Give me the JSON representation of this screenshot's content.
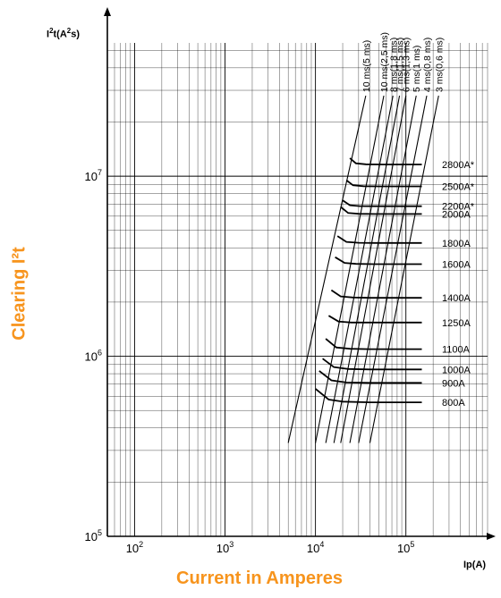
{
  "chart_data": {
    "type": "line",
    "title": "",
    "xlabel": "Current in Amperes",
    "ylabel": "Clearing I²t",
    "x_unit": "Ip(A)",
    "y_unit": "I²t(A²s)",
    "x_scale": "log",
    "y_scale": "log",
    "xlim": [
      50,
      800000
    ],
    "ylim": [
      100000,
      55000000
    ],
    "x_ticks": [
      100,
      1000,
      10000,
      100000
    ],
    "y_ticks": [
      100000,
      1000000,
      10000000
    ],
    "grid": true,
    "series": [
      {
        "name": "800A",
        "x": [
          10000,
          14000,
          20000,
          40000,
          150000
        ],
        "y": [
          660000,
          575000,
          560000,
          555000,
          555000
        ]
      },
      {
        "name": "900A",
        "x": [
          11000,
          15000,
          22000,
          40000,
          150000
        ],
        "y": [
          830000,
          735000,
          715000,
          712000,
          712000
        ]
      },
      {
        "name": "1000A",
        "x": [
          12000,
          16000,
          23000,
          40000,
          150000
        ],
        "y": [
          970000,
          870000,
          850000,
          845000,
          845000
        ]
      },
      {
        "name": "1100A",
        "x": [
          13000,
          17000,
          24000,
          40000,
          150000
        ],
        "y": [
          1250000,
          1120000,
          1100000,
          1095000,
          1095000
        ]
      },
      {
        "name": "1250A",
        "x": [
          14000,
          18000,
          25000,
          40000,
          150000
        ],
        "y": [
          1680000,
          1560000,
          1540000,
          1540000,
          1540000
        ]
      },
      {
        "name": "1400A",
        "x": [
          15000,
          19000,
          26000,
          40000,
          150000
        ],
        "y": [
          2330000,
          2150000,
          2120000,
          2110000,
          2110000
        ]
      },
      {
        "name": "1600A",
        "x": [
          16500,
          21000,
          28000,
          45000,
          150000
        ],
        "y": [
          3550000,
          3300000,
          3260000,
          3250000,
          3250000
        ]
      },
      {
        "name": "1800A",
        "x": [
          17500,
          22000,
          30000,
          45000,
          150000
        ],
        "y": [
          4650000,
          4320000,
          4270000,
          4260000,
          4260000
        ]
      },
      {
        "name": "2000A",
        "x": [
          19000,
          23000,
          30000,
          45000,
          150000
        ],
        "y": [
          6750000,
          6250000,
          6180000,
          6170000,
          6170000
        ]
      },
      {
        "name": "2200A*",
        "x": [
          20000,
          24000,
          31000,
          45000,
          150000
        ],
        "y": [
          7350000,
          6900000,
          6820000,
          6810000,
          6810000
        ]
      },
      {
        "name": "2500A*",
        "x": [
          22000,
          26000,
          34000,
          50000,
          150000
        ],
        "y": [
          9500000,
          8900000,
          8800000,
          8780000,
          8780000
        ]
      },
      {
        "name": "2800A*",
        "x": [
          24000,
          28000,
          36000,
          55000,
          150000
        ],
        "y": [
          12600000,
          11800000,
          11650000,
          11620000,
          11620000
        ]
      }
    ],
    "reference_lines": [
      {
        "name": "10 ms(5 ms)",
        "x": [
          5000,
          36000
        ],
        "y": [
          330000,
          28000000
        ]
      },
      {
        "name": "10 ms(2,5 ms)",
        "x": [
          10000,
          57000
        ],
        "y": [
          330000,
          28000000
        ]
      },
      {
        "name": "8 ms(1,8 ms)",
        "x": [
          13000,
          72000
        ],
        "y": [
          330000,
          28000000
        ]
      },
      {
        "name": "7 ms(1,5 ms)",
        "x": [
          16000,
          85000
        ],
        "y": [
          330000,
          28000000
        ]
      },
      {
        "name": "6 ms(1,3 ms)",
        "x": [
          19000,
          100000
        ],
        "y": [
          330000,
          28000000
        ]
      },
      {
        "name": "5 ms(1 ms)",
        "x": [
          24000,
          130000
        ],
        "y": [
          330000,
          28000000
        ]
      },
      {
        "name": "4 ms(0,8 ms)",
        "x": [
          30000,
          170000
        ],
        "y": [
          330000,
          28000000
        ]
      },
      {
        "name": "3 ms(0,6 ms)",
        "x": [
          40000,
          230000
        ],
        "y": [
          330000,
          28000000
        ]
      }
    ]
  }
}
